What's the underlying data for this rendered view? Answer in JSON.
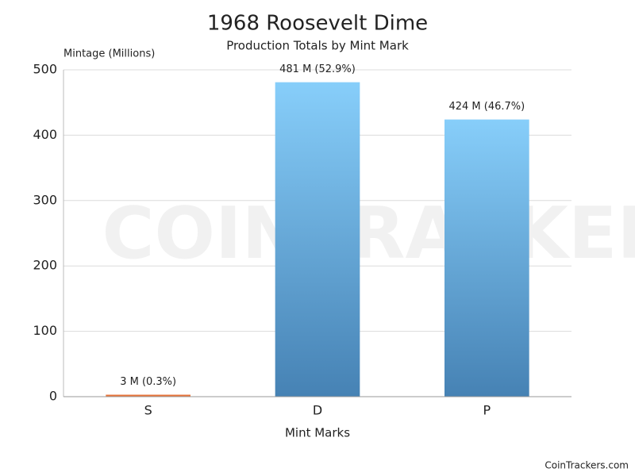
{
  "chart_data": {
    "type": "bar",
    "title": "1968 Roosevelt Dime",
    "subtitle": "Production Totals by Mint Mark",
    "y_label": "Mintage (Millions)",
    "x_label": "Mint Marks",
    "watermark": "COINTRACKERS",
    "footer": "CoinTrackers.com",
    "categories": [
      "S",
      "D",
      "P"
    ],
    "values": [
      3,
      481,
      424
    ],
    "value_labels": [
      "3 M (0.3%)",
      "481 M (52.9%)",
      "424 M (46.7%)"
    ],
    "colors": [
      "#e8743b",
      "#87cefa",
      "#87cefa"
    ],
    "gradient_end": [
      "#e8743b",
      "#4682b4",
      "#4682b4"
    ],
    "ylim": [
      0,
      500
    ],
    "yticks": [
      0,
      100,
      200,
      300,
      400,
      500
    ],
    "grid": true
  }
}
